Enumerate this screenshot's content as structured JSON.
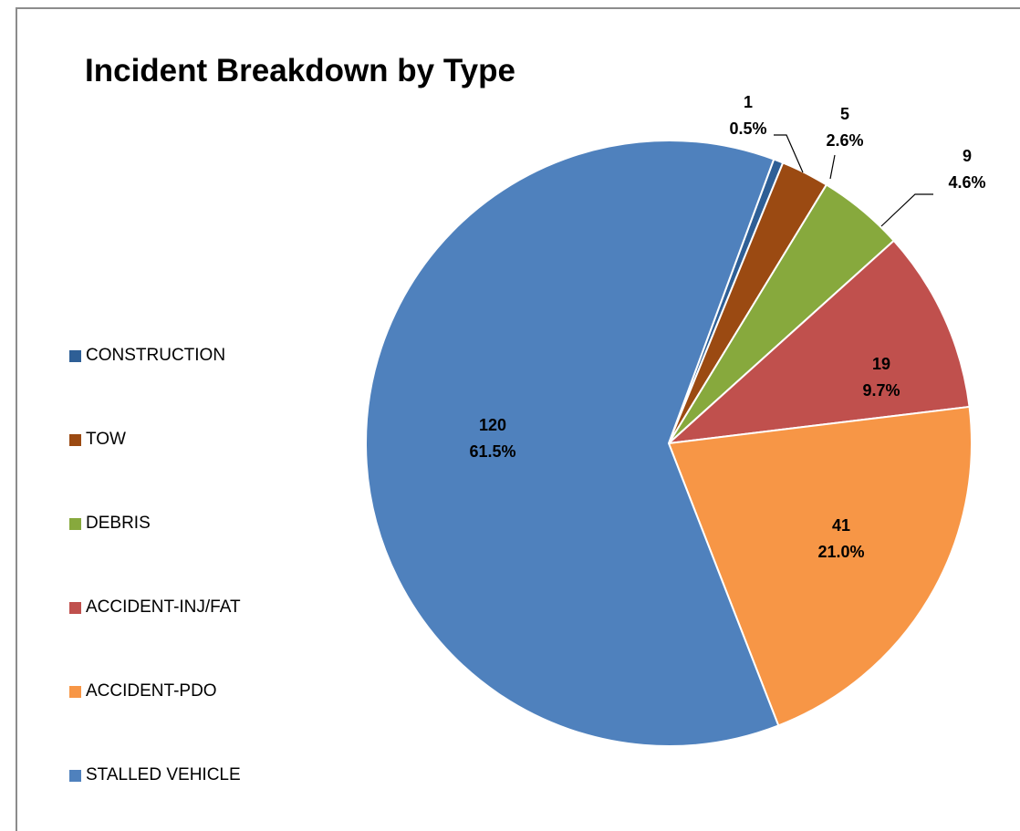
{
  "chart_data": {
    "type": "pie",
    "title": "Incident Breakdown by Type",
    "legend_position": "left",
    "slices": [
      {
        "label": "CONSTRUCTION",
        "value": 1,
        "percent": "0.5%",
        "value_text": "1",
        "color": "#2e5f96"
      },
      {
        "label": "TOW",
        "value": 5,
        "percent": "2.6%",
        "value_text": "5",
        "color": "#9b4a12"
      },
      {
        "label": "DEBRIS",
        "value": 9,
        "percent": "4.6%",
        "value_text": "9",
        "color": "#87a93d"
      },
      {
        "label": "ACCIDENT-INJ/FAT",
        "value": 19,
        "percent": "9.7%",
        "value_text": "19",
        "color": "#c0504d"
      },
      {
        "label": "ACCIDENT-PDO",
        "value": 41,
        "percent": "21.0%",
        "value_text": "41",
        "color": "#f79646"
      },
      {
        "label": "STALLED VEHICLE",
        "value": 120,
        "percent": "61.5%",
        "value_text": "120",
        "color": "#4f81bd"
      }
    ]
  }
}
